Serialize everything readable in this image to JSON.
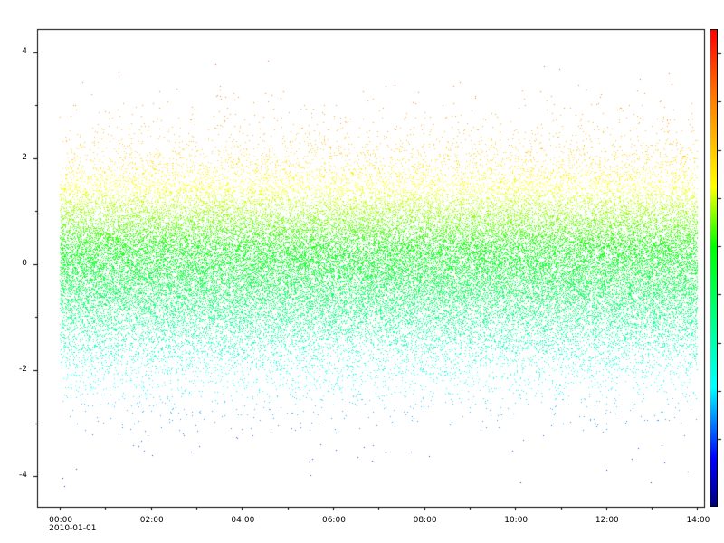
{
  "chart_data": {
    "type": "scatter",
    "title": "",
    "xlabel": "",
    "ylabel": "",
    "x_axis": {
      "kind": "time",
      "start": "2010-01-01 00:00",
      "end": "2010-01-01 14:00",
      "tick_labels": [
        "00:00",
        "02:00",
        "04:00",
        "06:00",
        "08:00",
        "10:00",
        "12:00",
        "14:00"
      ],
      "tick_values_hours": [
        0,
        2,
        4,
        6,
        8,
        10,
        12,
        14
      ],
      "date_label": "2010-01-01",
      "xlim_hours": [
        -0.5,
        14.15
      ]
    },
    "y_axis": {
      "tick_labels": [
        "4",
        "2",
        "0",
        "-2",
        "-4"
      ],
      "tick_values": [
        4,
        2,
        0,
        -2,
        -4
      ],
      "ylim": [
        -4.58,
        4.44
      ]
    },
    "series": [
      {
        "distribution": "normal",
        "mean": 0,
        "std": 1,
        "y_range_observed": [
          -4.2,
          4.05
        ],
        "point_count_approx": 50400,
        "color_by": "y value"
      }
    ],
    "colorbar": {
      "present": true,
      "labels": false,
      "colormap": [
        "#000080",
        "#0000ff",
        "#00ffff",
        "#00ff00",
        "#ffff00",
        "#ff8000",
        "#ff0000"
      ]
    },
    "grid": false,
    "legend": "none"
  }
}
